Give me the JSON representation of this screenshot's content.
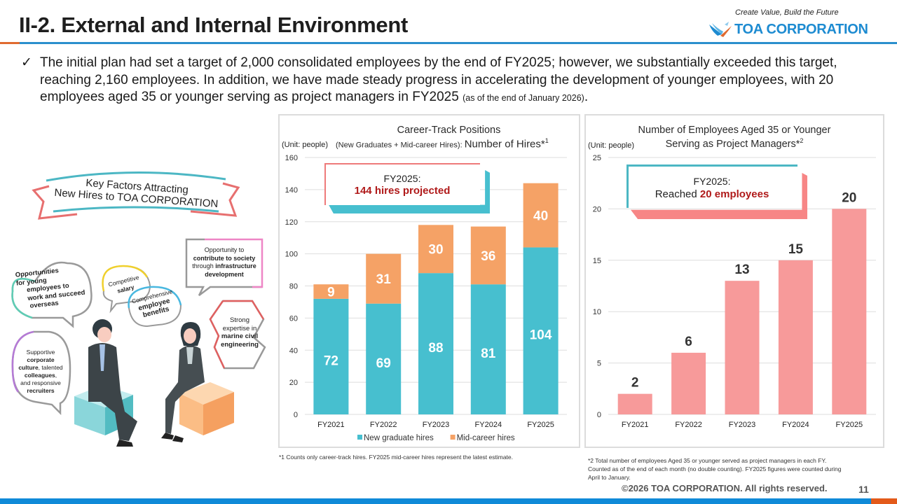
{
  "header": {
    "title": "II-2. External and Internal Environment",
    "tagline": "Create Value, Build the Future",
    "logo_text": "TOA CORPORATION",
    "logo_icon": "bird-logo-icon"
  },
  "summary": {
    "check_icon": "✓",
    "text": "The initial plan had set a target of 2,000 consolidated employees by the end of FY2025; however, we substantially exceeded this target, reaching 2,160 employees. In addition, we have made steady progress in accelerating the development of younger employees, with 20 employees aged 35 or younger serving as project managers in FY2025 ",
    "note": "(as of the end of January 2026)",
    "end": "."
  },
  "illustration": {
    "banner_line1": "Key Factors Attracting",
    "banner_line2": "New Hires to TOA CORPORATION",
    "bubbles": {
      "overseas": [
        "Opportunities",
        "for young",
        "employees to",
        "work and succeed",
        "overseas"
      ],
      "salary": [
        "Competitive",
        "salary"
      ],
      "benefits": [
        "Comprehensive",
        "employee",
        "benefits"
      ],
      "society_pre": "Opportunity to",
      "society_bold1": "contribute to society",
      "society_mid": "through ",
      "society_bold2": "infrastructure",
      "society_bold3": "development",
      "expertise_l1": "Strong",
      "expertise_l2": "expertise in",
      "expertise_b1": "marine civil",
      "expertise_b2": "engineering",
      "culture_l1": "Supportive",
      "culture_b1": "corporate",
      "culture_b2": "culture",
      "culture_t2": ", talented",
      "culture_b3": "colleagues",
      "culture_t3": ",",
      "culture_l4": "and responsive",
      "culture_b4": "recruiters"
    }
  },
  "chart_data": [
    {
      "type": "bar",
      "stacked": true,
      "title": "Career-Track Positions",
      "subtitle_small": "(New Graduates + Mid-career Hires): ",
      "subtitle_large": "Number of Hires*",
      "subtitle_sup": "1",
      "unit_label": "(Unit: people)",
      "categories": [
        "FY2021",
        "FY2022",
        "FY2023",
        "FY2024",
        "FY2025"
      ],
      "series": [
        {
          "name": "New graduate hires",
          "color": "#47bfcf",
          "values": [
            72,
            69,
            88,
            81,
            104
          ]
        },
        {
          "name": "Mid-career hires",
          "color": "#f5a266",
          "values": [
            9,
            31,
            30,
            36,
            40
          ]
        }
      ],
      "ylim": [
        0,
        160
      ],
      "yticks": [
        0,
        20,
        40,
        60,
        80,
        100,
        120,
        140,
        160
      ],
      "grid": true,
      "legend": "bottom",
      "callout_line1": "FY2025:",
      "callout_line2": "144 hires projected",
      "footnote": "*1 Counts only career-track hires. FY2025 mid-career hires represent the latest estimate."
    },
    {
      "type": "bar",
      "title_line1": "Number of Employees Aged 35 or Younger",
      "title_line2": "Serving as Project Managers*",
      "title_sup": "2",
      "unit_label": "(Unit: people)",
      "categories": [
        "FY2021",
        "FY2022",
        "FY2023",
        "FY2024",
        "FY2025"
      ],
      "series": [
        {
          "name": "Employees aged 35 or younger serving as PMs",
          "color": "#f79a9a",
          "values": [
            2,
            6,
            13,
            15,
            20
          ]
        }
      ],
      "ylim": [
        0,
        25
      ],
      "yticks": [
        0,
        5,
        10,
        15,
        20,
        25
      ],
      "grid": true,
      "legend": "none",
      "callout_line1": "FY2025:",
      "callout_pre": "Reached ",
      "callout_bold": "20 employees",
      "footnote_l1": "*2  Total number of employees Aged 35 or younger served as project managers in each FY.",
      "footnote_l2": "Counted as of the end of each month (no double counting).  FY2025 figures were counted during",
      "footnote_l3": "April to January."
    }
  ],
  "footer": {
    "copyright": "©2026 TOA CORPORATION. All rights reserved.",
    "page_number": "11"
  },
  "colors": {
    "accent_blue": "#2a8fcd",
    "accent_orange": "#e06a30",
    "callout_red": "#b01a1a"
  }
}
